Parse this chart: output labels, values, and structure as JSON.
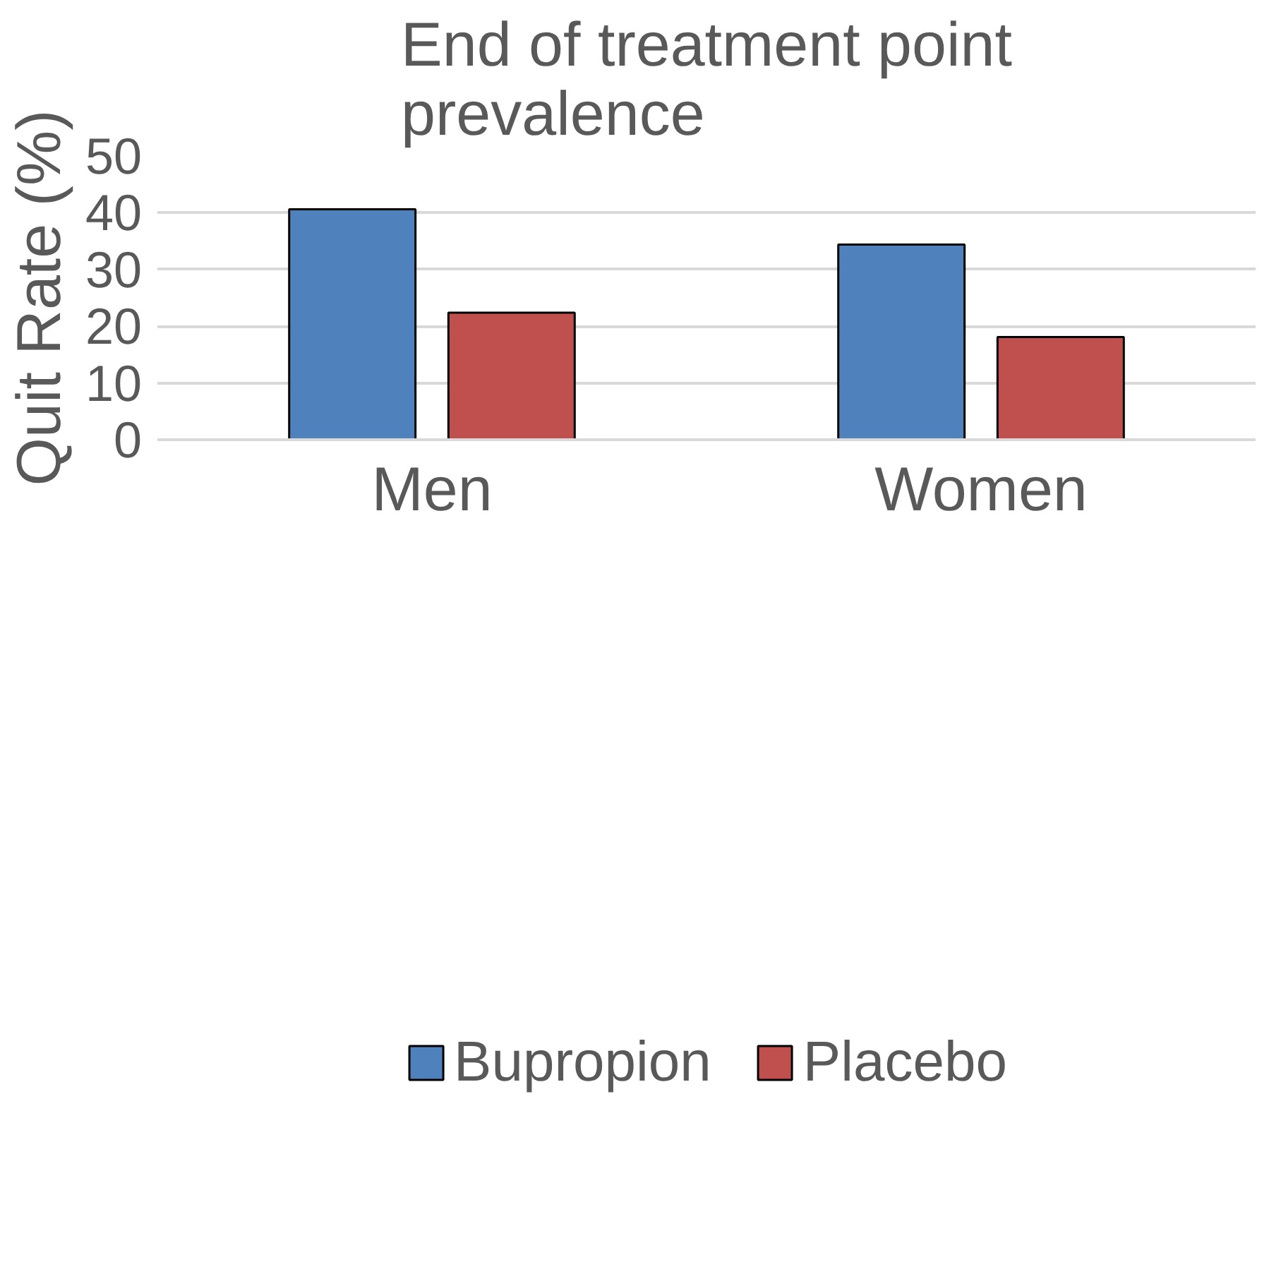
{
  "chart_data": {
    "type": "bar",
    "title": "End of treatment point prevalence",
    "ylabel": "Quit Rate (%)",
    "categories": [
      "Men",
      "Women"
    ],
    "series": [
      {
        "name": "Bupropion",
        "color": "#4f81bd",
        "values": [
          40.6,
          34.4
        ]
      },
      {
        "name": "Placebo",
        "color": "#c0504d",
        "values": [
          22.4,
          18.1
        ]
      }
    ],
    "ylim": [
      0,
      50
    ],
    "yticks": [
      0,
      10,
      20,
      30,
      40,
      50
    ],
    "grid": "y",
    "legend": "bottom"
  }
}
